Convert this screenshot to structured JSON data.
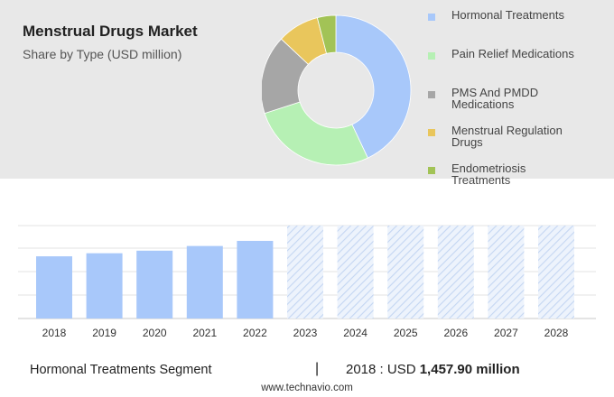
{
  "header": {
    "title": "Menstrual Drugs Market",
    "subtitle": "Share by Type (USD million)"
  },
  "footer": {
    "segment": "Hormonal Treatments Segment",
    "separator": "|",
    "year_label": "2018 : USD",
    "value_label": "1,457.90 million",
    "source": "www.technavio.com"
  },
  "chart_data": [
    {
      "type": "pie",
      "style": "donut",
      "categories": [
        "Hormonal Treatments",
        "Pain Relief Medications",
        "PMS And PMDD Medications",
        "Menstrual Regulation Drugs",
        "Endometriosis Treatments"
      ],
      "values": [
        43,
        27,
        17,
        9,
        4
      ],
      "colors": [
        "#a8c8fa",
        "#b6f0b4",
        "#a6a6a6",
        "#e9c65c",
        "#a2c356"
      ],
      "legend_labels": [
        [
          "Hormonal Treatments"
        ],
        [
          "Pain Relief Medications"
        ],
        [
          "PMS And PMDD",
          "Medications"
        ],
        [
          "Menstrual Regulation",
          "Drugs"
        ],
        [
          "Endometriosis",
          "Treatments"
        ]
      ]
    },
    {
      "type": "bar",
      "categories": [
        "2018",
        "2019",
        "2020",
        "2021",
        "2022",
        "2023",
        "2024",
        "2025",
        "2026",
        "2027",
        "2028"
      ],
      "values": [
        1457.9,
        1530,
        1590,
        1700,
        1820,
        null,
        null,
        null,
        null,
        null,
        null
      ],
      "forecast_from": "2023",
      "ylim": [
        0,
        2200
      ],
      "grid": true,
      "colors": {
        "actual": "#a8c8fa",
        "forecast": "#d6e4f7"
      }
    }
  ]
}
